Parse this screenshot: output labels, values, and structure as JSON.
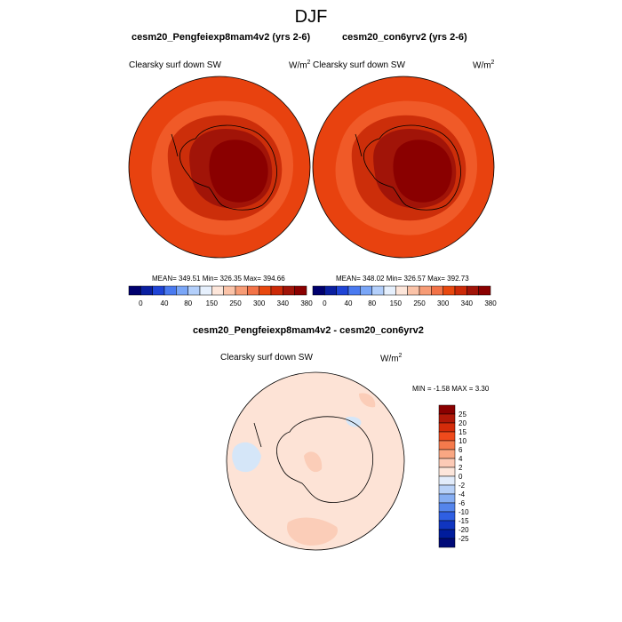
{
  "title": "DJF",
  "colors": {
    "outer": "#e8420f",
    "mid": "#cc2e0a",
    "inner": "#a11408",
    "core": "#8a0000",
    "ring": "#f05a28",
    "diffBg": "#fde3d6",
    "diffPale": "#fbcdb8",
    "diffBlue": "#d5e6f8"
  },
  "panels": [
    {
      "title": "cesm20_Pengfeiexp8mam4v2 (yrs 2-6)",
      "variable": "Clearsky surf down SW",
      "units": "W/m",
      "units_sup": "2",
      "stats": "MEAN= 349.51  Min= 326.35  Max= 394.66"
    },
    {
      "title": "cesm20_con6yrv2 (yrs 2-6)",
      "variable": "Clearsky surf down SW",
      "units": "W/m",
      "units_sup": "2",
      "stats": "MEAN= 348.02  Min= 326.57  Max= 392.73"
    }
  ],
  "colorbar_top": {
    "labels": [
      "0",
      "40",
      "80",
      "150",
      "250",
      "300",
      "340",
      "380"
    ],
    "colors": [
      "#00006e",
      "#0a1fa0",
      "#1f44d6",
      "#4a7af0",
      "#7aa6f7",
      "#b3cffb",
      "#e6f0fd",
      "#fde6da",
      "#fbc3a8",
      "#f79c76",
      "#f27348",
      "#e8480f",
      "#cc2a08",
      "#a11408",
      "#8a0000"
    ]
  },
  "diff": {
    "title": "cesm20_Pengfeiexp8mam4v2 - cesm20_con6yrv2",
    "variable": "Clearsky surf down SW",
    "units": "W/m",
    "units_sup": "2",
    "stats": "MIN =  -1.58 MAX =   3.30"
  },
  "colorbar_diff": {
    "labels": [
      "25",
      "20",
      "15",
      "10",
      "6",
      "4",
      "2",
      "0",
      "-2",
      "-4",
      "-6",
      "-10",
      "-15",
      "-20",
      "-25"
    ],
    "colors": [
      "#8a0000",
      "#b01808",
      "#d42c0a",
      "#ef4a1c",
      "#f57a4c",
      "#f9a783",
      "#fccab6",
      "#fde6db",
      "#e2ecfb",
      "#b8d1f8",
      "#86aef3",
      "#5585ec",
      "#2f5fe2",
      "#1035c0",
      "#001c9c",
      "#000a78"
    ]
  }
}
